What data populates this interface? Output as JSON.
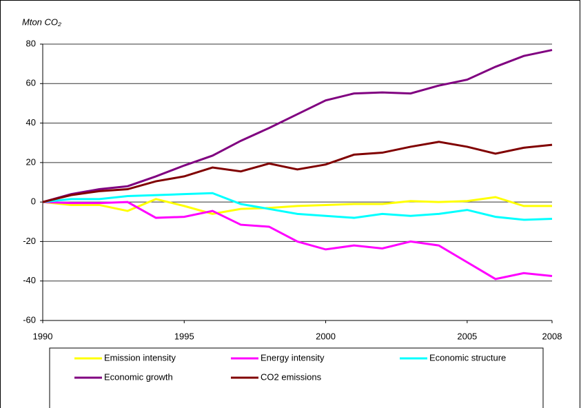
{
  "chart_data": {
    "type": "line",
    "y_axis_label": "Mton CO₂",
    "x": [
      1990,
      1991,
      1992,
      1993,
      1994,
      1995,
      1996,
      1997,
      1998,
      1999,
      2000,
      2001,
      2002,
      2003,
      2004,
      2005,
      2006,
      2007,
      2008
    ],
    "xlim": [
      1990,
      2008
    ],
    "xticks": [
      1990,
      1995,
      2000,
      2005,
      2008
    ],
    "ylim": [
      -60,
      80
    ],
    "yticks": [
      -60,
      -40,
      -20,
      0,
      20,
      40,
      60,
      80
    ],
    "grid": true,
    "legend": "bottom",
    "series": [
      {
        "name": "Emission intensity",
        "color": "#ffff00",
        "values": [
          0,
          -1.5,
          -1.5,
          -4.5,
          1.5,
          -2,
          -6,
          -3.5,
          -3,
          -2,
          -1.5,
          -1,
          -1,
          0.5,
          0,
          0.5,
          2.5,
          -2,
          -2
        ]
      },
      {
        "name": "Energy intensity",
        "color": "#ff00ff",
        "values": [
          0,
          -0.5,
          -0.5,
          0,
          -8,
          -7.5,
          -4.5,
          -11.5,
          -12.5,
          -20,
          -24,
          -22,
          -23.5,
          -20,
          -22,
          -30.5,
          -39,
          -36,
          -37.5
        ]
      },
      {
        "name": "Economic structure",
        "color": "#00ffff",
        "values": [
          0,
          1.5,
          1.5,
          3,
          3.5,
          4,
          4.5,
          -1,
          -3.5,
          -6,
          -7,
          -8,
          -6,
          -7,
          -6,
          -4,
          -7.5,
          -9,
          -8.5
        ]
      },
      {
        "name": "Economic growth",
        "color": "#800080",
        "values": [
          0,
          4,
          6.5,
          8,
          13,
          18.5,
          23.5,
          31,
          37.5,
          44.5,
          51.5,
          55,
          55.5,
          55,
          59,
          62,
          68.5,
          74,
          77
        ]
      },
      {
        "name": "CO2 emissions",
        "color": "#800000",
        "values": [
          0,
          3.5,
          5.5,
          6.5,
          10.5,
          13,
          17.5,
          15.5,
          19.5,
          16.5,
          19,
          24,
          25,
          28,
          30.5,
          28,
          24.5,
          27.5,
          29
        ]
      }
    ]
  }
}
